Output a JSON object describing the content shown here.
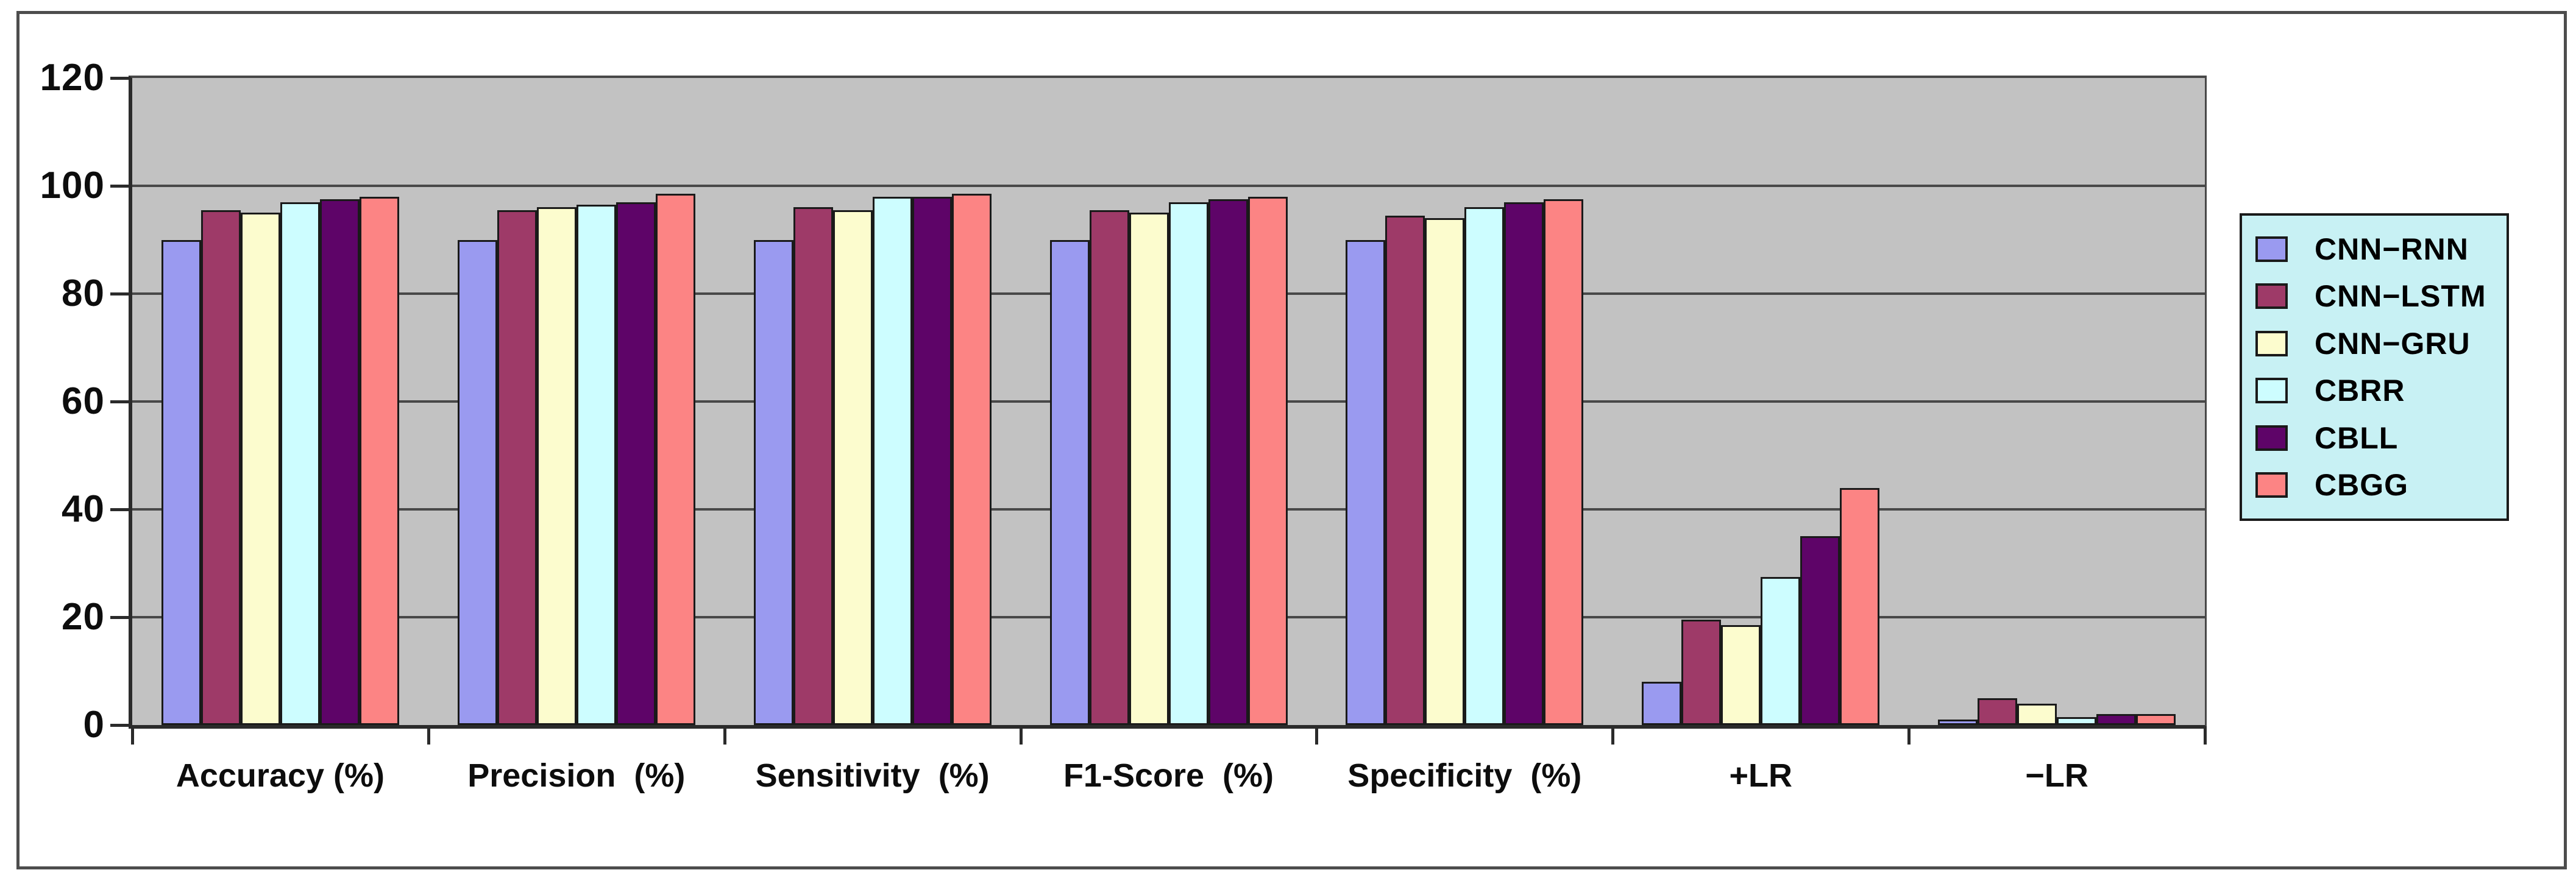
{
  "figure": {
    "background_color": "#ffffff",
    "frame_border_color": "#4d4d4d"
  },
  "chart_data": {
    "type": "bar",
    "title": "",
    "xlabel": "",
    "ylabel": "",
    "categories": [
      "Accuracy (%)",
      "Precision  (%)",
      "Sensitivity  (%)",
      "F1-Score  (%)",
      "Specificity  (%)",
      "+LR",
      "−LR"
    ],
    "series": [
      {
        "name": "CNN−RNN",
        "color": "#9a9af0",
        "values": [
          90,
          90,
          90,
          90,
          90,
          8,
          1
        ]
      },
      {
        "name": "CNN−LSTM",
        "color": "#9e3a68",
        "values": [
          95.5,
          95.5,
          96,
          95.5,
          94.5,
          19.5,
          5
        ]
      },
      {
        "name": "CNN−GRU",
        "color": "#fcfcce",
        "values": [
          95,
          96,
          95.5,
          95,
          94,
          18.5,
          4
        ]
      },
      {
        "name": "CBRR",
        "color": "#cdfdff",
        "values": [
          97,
          96.5,
          98,
          97,
          96,
          27.5,
          1.5
        ]
      },
      {
        "name": "CBLL",
        "color": "#5e0468",
        "values": [
          97.5,
          97,
          98,
          97.5,
          97,
          35,
          2
        ]
      },
      {
        "name": "CBGG",
        "color": "#fc8484",
        "values": [
          98,
          98.5,
          98.5,
          98,
          97.5,
          44,
          2
        ]
      }
    ],
    "ylim": [
      0,
      120
    ],
    "y_ticks": [
      0,
      20,
      40,
      60,
      80,
      100,
      120
    ],
    "grid": true,
    "legend_position": "right",
    "plot_background_color": "#c2c2c2",
    "gridline_color": "#484848",
    "axis_color": "#2b2b2b",
    "bar_border_color": "#1a1a1a",
    "legend_background_color": "#c8f1f4",
    "legend_border_color": "#1a1a1a"
  }
}
